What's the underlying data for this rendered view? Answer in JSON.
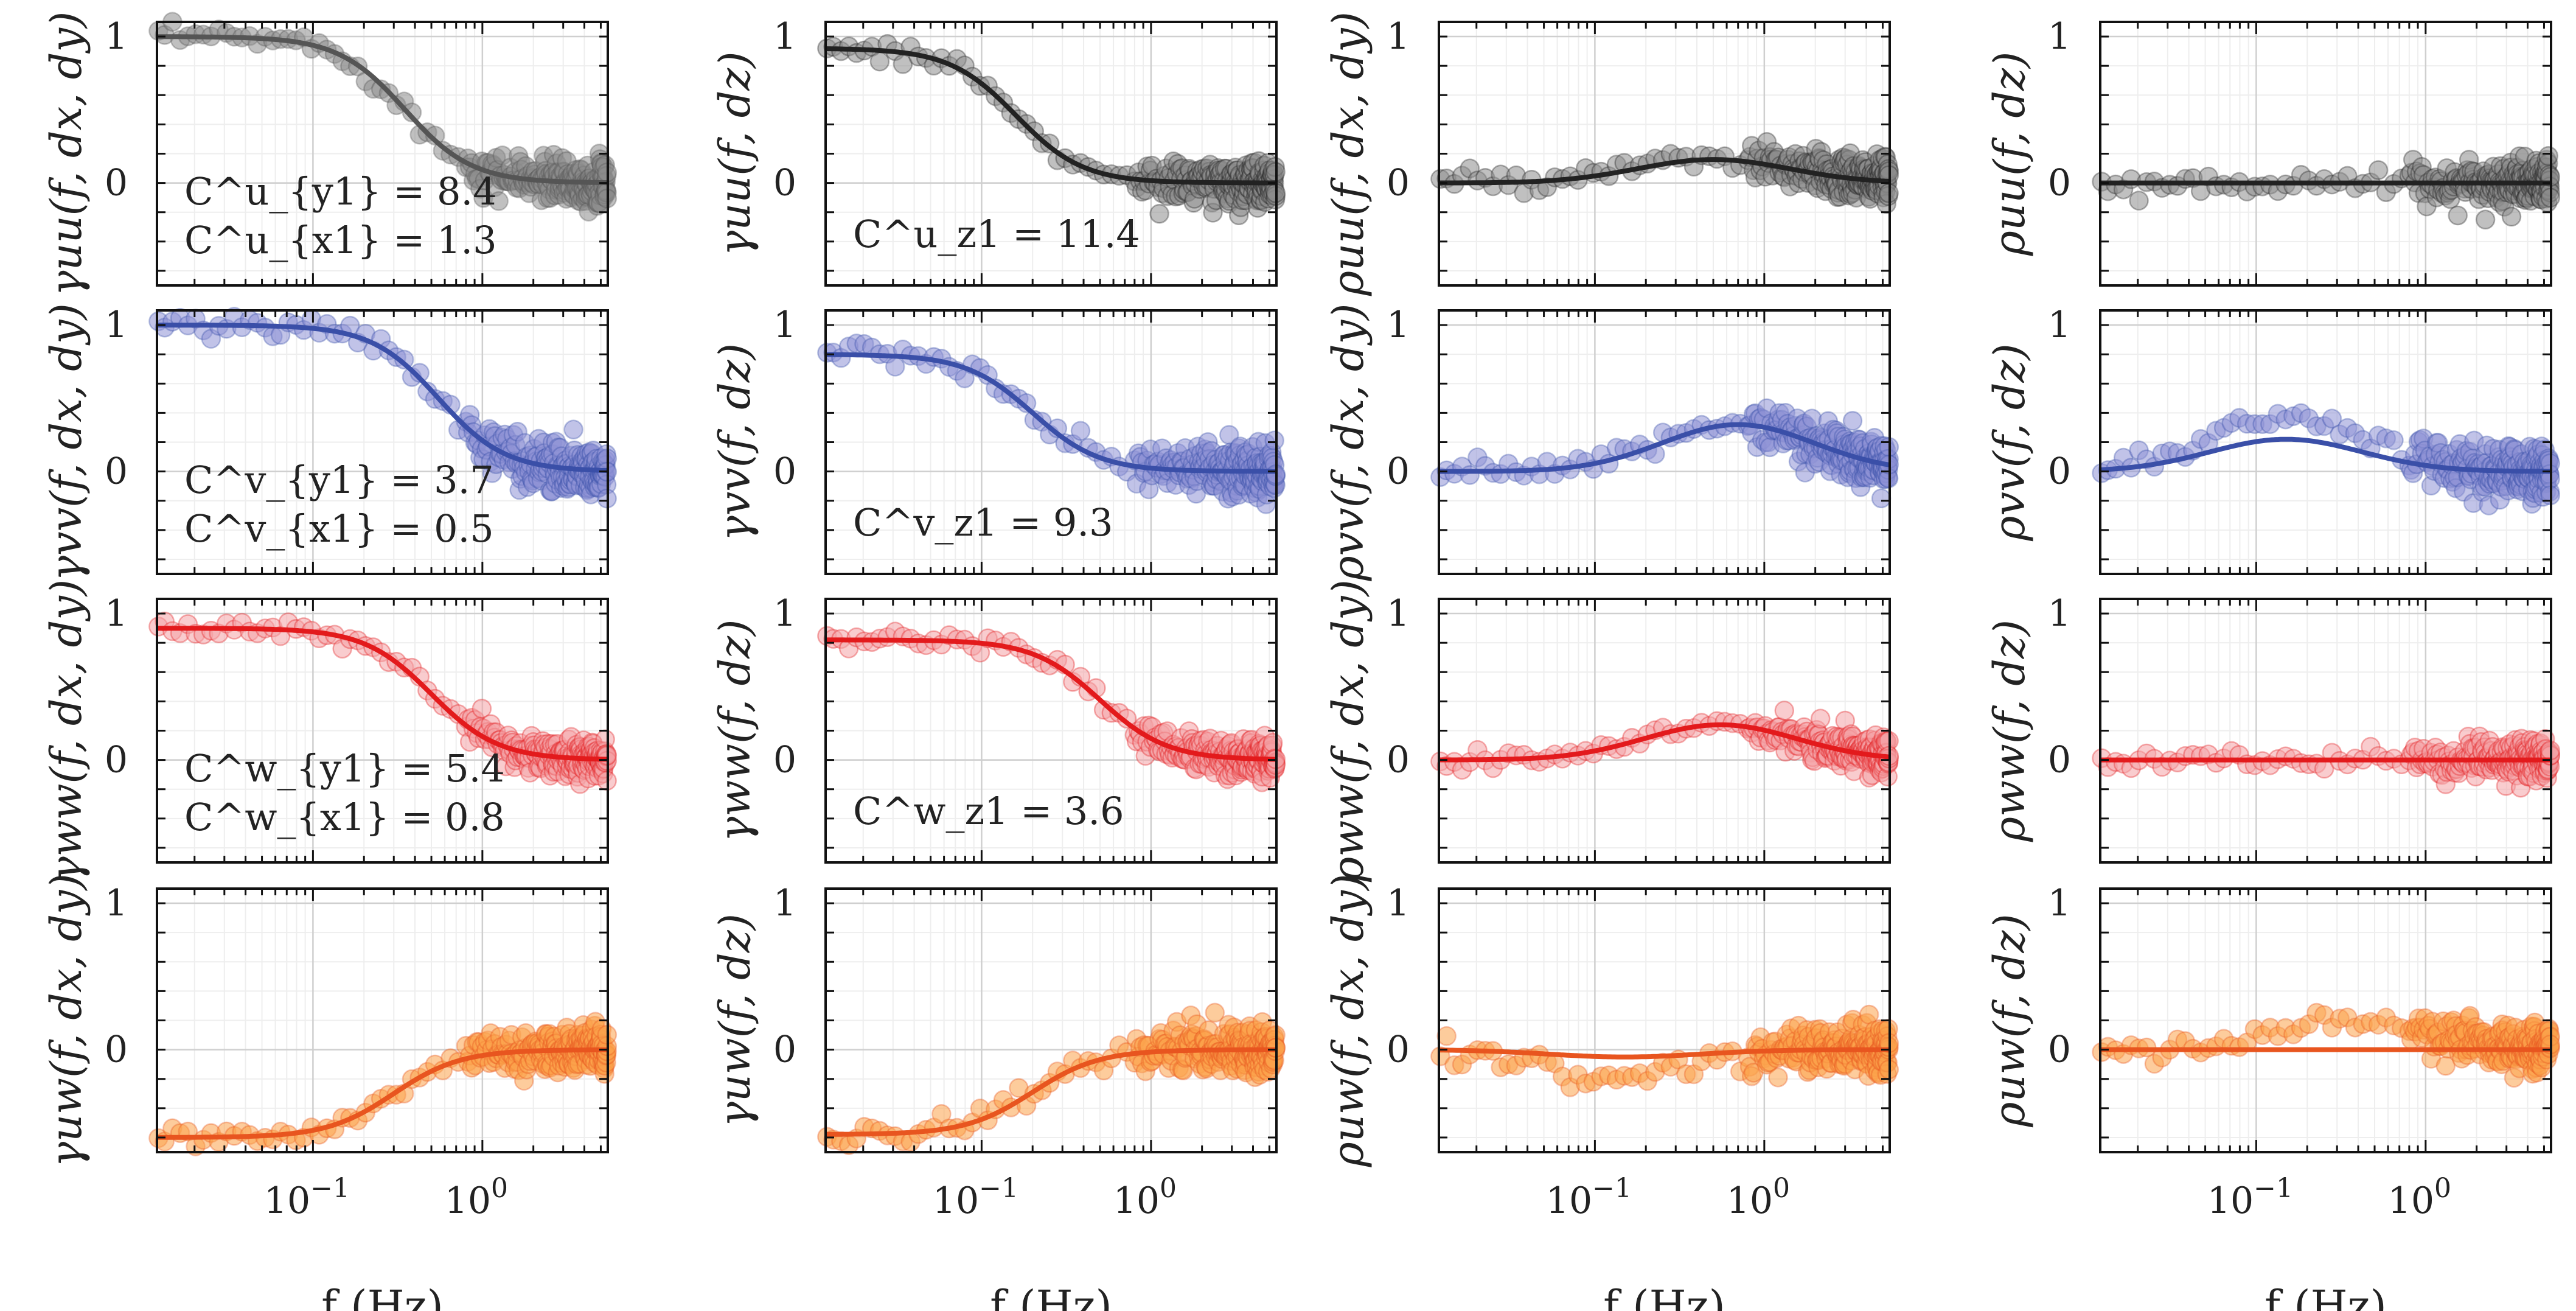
{
  "chart_data": [
    {
      "type": "scatter+line",
      "ylabel": "γuu(f, dx, dy)",
      "ylim": [
        -0.7,
        1.1
      ],
      "xlim": [
        0.012,
        5.5
      ],
      "xscale": "log",
      "xlabel": "",
      "series": [
        {
          "name": "data",
          "kind": "gauss",
          "amp": 1.0,
          "fc": 0.35,
          "width": 0.25,
          "noise": 0.06,
          "offset": 0
        },
        {
          "name": "fit",
          "kind": "gauss",
          "amp": 1.0,
          "fc": 0.35,
          "width": 0.25,
          "offset": 0
        }
      ],
      "color": "#555555",
      "fill": "#8c8c8c",
      "annotations": [
        "C^u_{y1} = 8.4",
        "C^u_{x1} = 1.3"
      ]
    },
    {
      "type": "scatter+line",
      "ylabel": "γuu(f, dz)",
      "ylim": [
        -0.7,
        1.1
      ],
      "xlim": [
        0.012,
        5.5
      ],
      "xscale": "log",
      "xlabel": "",
      "series": [
        {
          "name": "data",
          "kind": "gauss",
          "amp": 0.92,
          "fc": 0.16,
          "width": 0.25,
          "noise": 0.06,
          "offset": 0
        },
        {
          "name": "fit",
          "kind": "gauss",
          "amp": 0.92,
          "fc": 0.16,
          "width": 0.25,
          "offset": 0
        }
      ],
      "color": "#222222",
      "fill": "#8c8c8c",
      "annotations": [
        "C^u_z1 = 11.4"
      ]
    },
    {
      "type": "scatter+line",
      "ylabel": "ρuu(f, dx, dy)",
      "ylim": [
        -0.7,
        1.1
      ],
      "xlim": [
        0.012,
        5.5
      ],
      "xscale": "log",
      "xlabel": "",
      "series": [
        {
          "name": "data",
          "kind": "bump",
          "amp": 0.16,
          "fc": 0.5,
          "noise": 0.06
        },
        {
          "name": "fit",
          "kind": "bump",
          "amp": 0.16,
          "fc": 0.5
        }
      ],
      "color": "#222222",
      "fill": "#8c8c8c",
      "annotations": []
    },
    {
      "type": "scatter+line",
      "ylabel": "ρuu(f, dz)",
      "ylim": [
        -0.7,
        1.1
      ],
      "xlim": [
        0.012,
        5.5
      ],
      "xscale": "log",
      "xlabel": "",
      "series": [
        {
          "name": "data",
          "kind": "bump",
          "amp": 0.0,
          "fc": 0.5,
          "noise": 0.06
        },
        {
          "name": "fit",
          "kind": "bump",
          "amp": 0.0,
          "fc": 0.5
        }
      ],
      "color": "#222222",
      "fill": "#8c8c8c",
      "annotations": []
    },
    {
      "type": "scatter+line",
      "ylabel": "γvv(f, dx, dy)",
      "ylim": [
        -0.7,
        1.1
      ],
      "xlim": [
        0.012,
        5.5
      ],
      "xscale": "log",
      "xlabel": "",
      "series": [
        {
          "name": "data",
          "kind": "gauss",
          "amp": 1.0,
          "fc": 0.55,
          "width": 0.25,
          "noise": 0.07,
          "offset": 0
        },
        {
          "name": "fit",
          "kind": "gauss",
          "amp": 1.0,
          "fc": 0.55,
          "width": 0.25,
          "offset": 0
        }
      ],
      "color": "#3a4fa8",
      "fill": "#8e92d6",
      "annotations": [
        "C^v_{y1} = 3.7",
        "C^v_{x1} = 0.5"
      ]
    },
    {
      "type": "scatter+line",
      "ylabel": "γvv(f, dz)",
      "ylim": [
        -0.7,
        1.1
      ],
      "xlim": [
        0.012,
        5.5
      ],
      "xscale": "log",
      "xlabel": "",
      "series": [
        {
          "name": "data",
          "kind": "gauss",
          "amp": 0.8,
          "fc": 0.2,
          "width": 0.25,
          "noise": 0.07,
          "offset": 0
        },
        {
          "name": "fit",
          "kind": "gauss",
          "amp": 0.8,
          "fc": 0.2,
          "width": 0.25,
          "offset": 0
        }
      ],
      "color": "#3a4fa8",
      "fill": "#8e92d6",
      "annotations": [
        "C^v_z1 = 9.3"
      ]
    },
    {
      "type": "scatter+line",
      "ylabel": "ρvv(f, dx, dy)",
      "ylim": [
        -0.7,
        1.1
      ],
      "xlim": [
        0.012,
        5.5
      ],
      "xscale": "log",
      "xlabel": "",
      "series": [
        {
          "name": "data",
          "kind": "bump",
          "amp": 0.32,
          "fc": 0.7,
          "noise": 0.07
        },
        {
          "name": "fit",
          "kind": "bump",
          "amp": 0.32,
          "fc": 0.7
        }
      ],
      "color": "#3a4fa8",
      "fill": "#8e92d6",
      "annotations": []
    },
    {
      "type": "scatter+line",
      "ylabel": "ρvv(f, dz)",
      "ylim": [
        -0.7,
        1.1
      ],
      "xlim": [
        0.012,
        5.5
      ],
      "xscale": "log",
      "xlabel": "",
      "series": [
        {
          "name": "data",
          "kind": "bump",
          "amp": 0.38,
          "fc": 0.15,
          "noise": 0.07
        },
        {
          "name": "fit",
          "kind": "bump",
          "amp": 0.22,
          "fc": 0.15
        }
      ],
      "color": "#3a4fa8",
      "fill": "#8e92d6",
      "annotations": []
    },
    {
      "type": "scatter+line",
      "ylabel": "γww(f, dx, dy)",
      "ylim": [
        -0.7,
        1.1
      ],
      "xlim": [
        0.012,
        5.5
      ],
      "xscale": "log",
      "xlabel": "",
      "series": [
        {
          "name": "data",
          "kind": "gauss",
          "amp": 0.9,
          "fc": 0.5,
          "width": 0.25,
          "noise": 0.05,
          "offset": 0
        },
        {
          "name": "fit",
          "kind": "gauss",
          "amp": 0.9,
          "fc": 0.5,
          "width": 0.25,
          "offset": 0
        }
      ],
      "color": "#e31a1c",
      "fill": "#f4a3a5",
      "annotations": [
        "C^w_{y1} = 5.4",
        "C^w_{x1} = 0.8"
      ]
    },
    {
      "type": "scatter+line",
      "ylabel": "γww(f, dz)",
      "ylim": [
        -0.7,
        1.1
      ],
      "xlim": [
        0.012,
        5.5
      ],
      "xscale": "log",
      "xlabel": "",
      "series": [
        {
          "name": "data",
          "kind": "gauss",
          "amp": 0.82,
          "fc": 0.5,
          "width": 0.25,
          "noise": 0.05,
          "offset": 0
        },
        {
          "name": "fit",
          "kind": "gauss",
          "amp": 0.82,
          "fc": 0.5,
          "width": 0.25,
          "offset": 0
        }
      ],
      "color": "#e31a1c",
      "fill": "#f4a3a5",
      "annotations": [
        "C^w_z1 = 3.6"
      ]
    },
    {
      "type": "scatter+line",
      "ylabel": "ρww(f, dx, dy)",
      "ylim": [
        -0.7,
        1.1
      ],
      "xlim": [
        0.012,
        5.5
      ],
      "xscale": "log",
      "xlabel": "",
      "series": [
        {
          "name": "data",
          "kind": "bump",
          "amp": 0.26,
          "fc": 0.55,
          "noise": 0.05
        },
        {
          "name": "fit",
          "kind": "bump",
          "amp": 0.24,
          "fc": 0.55
        }
      ],
      "color": "#e31a1c",
      "fill": "#f4a3a5",
      "annotations": []
    },
    {
      "type": "scatter+line",
      "ylabel": "ρww(f, dz)",
      "ylim": [
        -0.7,
        1.1
      ],
      "xlim": [
        0.012,
        5.5
      ],
      "xscale": "log",
      "xlabel": "",
      "series": [
        {
          "name": "data",
          "kind": "bump",
          "amp": 0.0,
          "fc": 0.5,
          "noise": 0.05
        },
        {
          "name": "fit",
          "kind": "bump",
          "amp": 0.0,
          "fc": 0.5
        }
      ],
      "color": "#e31a1c",
      "fill": "#f4a3a5",
      "annotations": []
    },
    {
      "type": "scatter+line",
      "ylabel": "γuw(f, dx, dy)",
      "ylim": [
        -0.7,
        1.1
      ],
      "xlim": [
        0.012,
        5.5
      ],
      "xscale": "log",
      "xlabel": "f (Hz)",
      "series": [
        {
          "name": "data",
          "kind": "gauss",
          "amp": -0.6,
          "fc": 0.3,
          "width": 0.3,
          "noise": 0.06,
          "offset": 0
        },
        {
          "name": "fit",
          "kind": "gauss",
          "amp": -0.6,
          "fc": 0.3,
          "width": 0.3,
          "offset": 0
        }
      ],
      "color": "#e8551f",
      "fill": "#fba24a",
      "annotations": []
    },
    {
      "type": "scatter+line",
      "ylabel": "γuw(f, dz)",
      "ylim": [
        -0.7,
        1.1
      ],
      "xlim": [
        0.012,
        5.5
      ],
      "xscale": "log",
      "xlabel": "f (Hz)",
      "series": [
        {
          "name": "data",
          "kind": "gauss",
          "amp": -0.58,
          "fc": 0.2,
          "width": 0.3,
          "noise": 0.06,
          "offset": 0
        },
        {
          "name": "fit",
          "kind": "gauss",
          "amp": -0.58,
          "fc": 0.2,
          "width": 0.3,
          "offset": 0
        }
      ],
      "color": "#e8551f",
      "fill": "#fba24a",
      "annotations": []
    },
    {
      "type": "scatter+line",
      "ylabel": "ρuw(f, dx, dy)",
      "ylim": [
        -0.7,
        1.1
      ],
      "xlim": [
        0.012,
        5.5
      ],
      "xscale": "log",
      "xlabel": "f (Hz)",
      "series": [
        {
          "name": "data",
          "kind": "bump",
          "amp": -0.2,
          "fc": 0.15,
          "noise": 0.07
        },
        {
          "name": "fit",
          "kind": "bump",
          "amp": -0.05,
          "fc": 0.15
        }
      ],
      "color": "#e8551f",
      "fill": "#fba24a",
      "annotations": []
    },
    {
      "type": "scatter+line",
      "ylabel": "ρuw(f, dz)",
      "ylim": [
        -0.7,
        1.1
      ],
      "xlim": [
        0.012,
        5.5
      ],
      "xscale": "log",
      "xlabel": "f (Hz)",
      "series": [
        {
          "name": "data",
          "kind": "bump",
          "amp": 0.2,
          "fc": 0.35,
          "noise": 0.06
        },
        {
          "name": "fit",
          "kind": "bump",
          "amp": 0.0,
          "fc": 0.35
        }
      ],
      "color": "#e8551f",
      "fill": "#fba24a",
      "annotations": []
    }
  ],
  "ticks": {
    "y": [
      {
        "value": 1,
        "label": "1"
      },
      {
        "value": 0,
        "label": "0"
      }
    ],
    "x": [
      {
        "value": 0.1,
        "label": "10",
        "sup": "−1"
      },
      {
        "value": 1,
        "label": "10",
        "sup": "0"
      }
    ]
  }
}
